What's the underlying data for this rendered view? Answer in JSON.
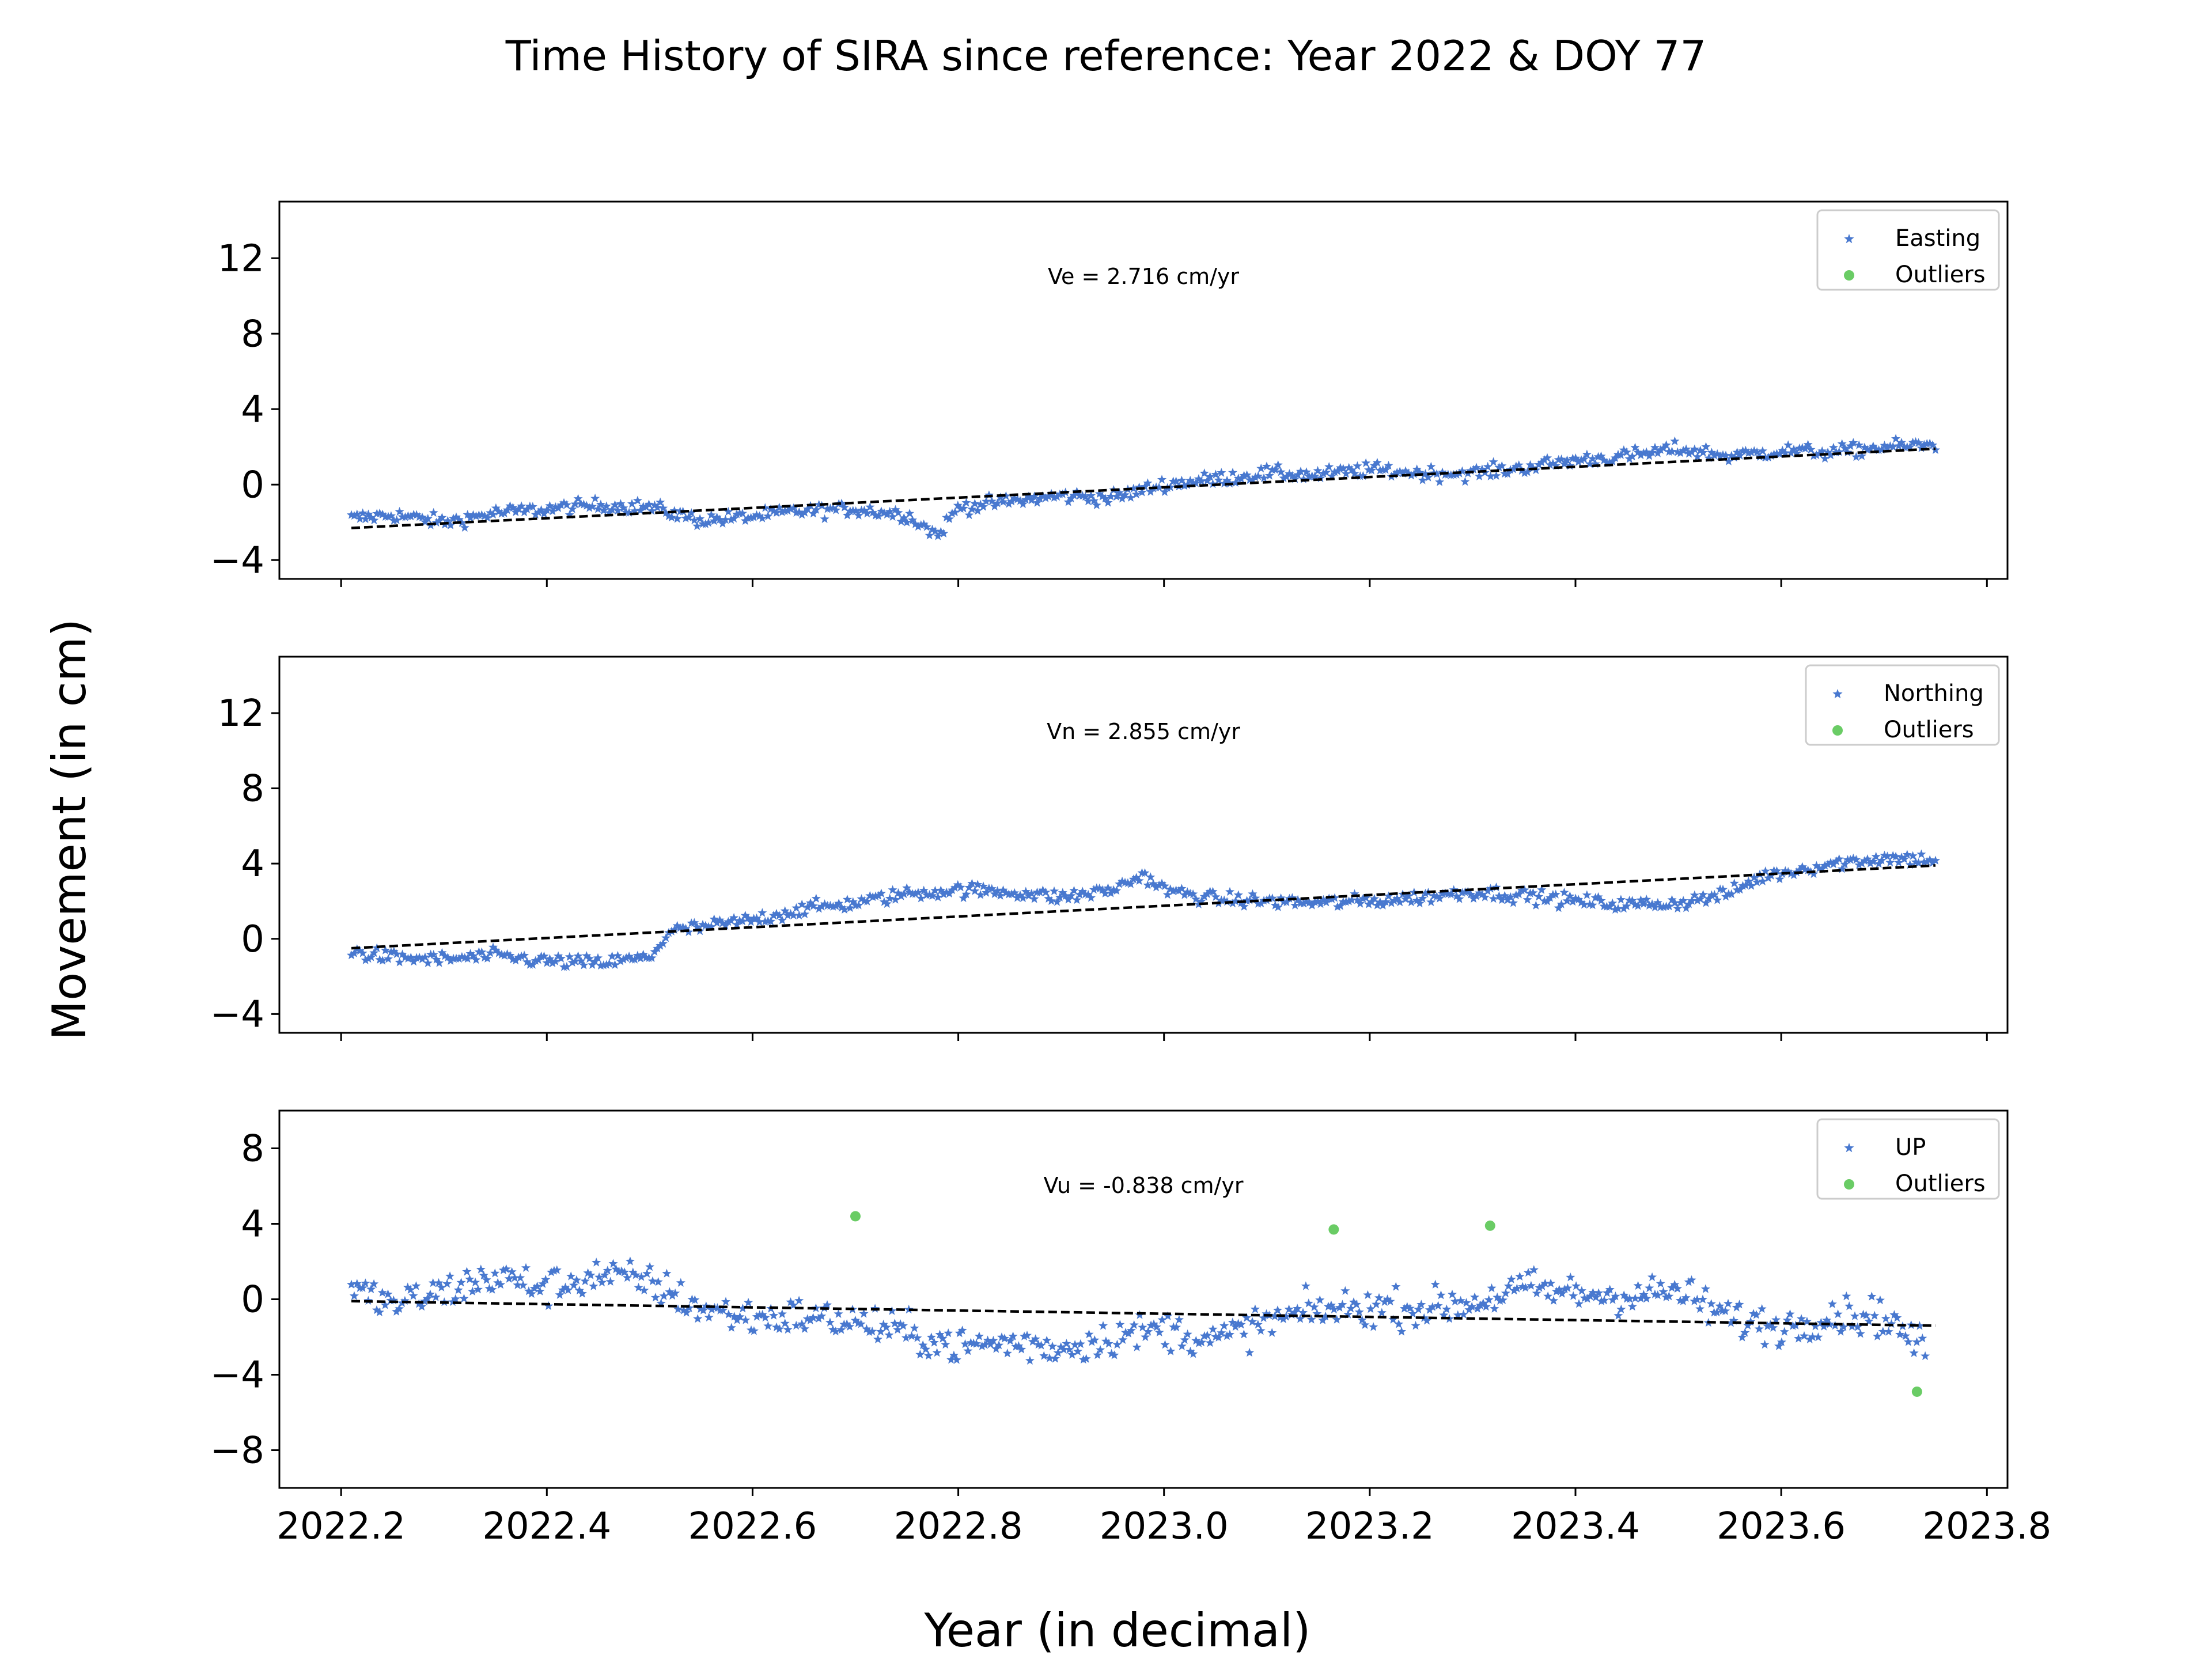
{
  "figure": {
    "title": "Time History of SIRA since reference: Year 2022 & DOY 77",
    "xlabel": "Year (in decimal)",
    "ylabel": "Movement (in cm)",
    "xlim": [
      2022.14,
      2023.82
    ],
    "xticks": [
      "2022.2",
      "2022.4",
      "2022.6",
      "2022.8",
      "2023.0",
      "2023.2",
      "2023.4",
      "2023.6",
      "2023.8"
    ],
    "colors": {
      "series": "#4878CF",
      "outlier": "#6ACC65",
      "fit": "#000000"
    }
  },
  "chart_data": [
    {
      "type": "scatter",
      "panel": "east",
      "xlim": [
        2022.14,
        2023.82
      ],
      "ylim": [
        -5,
        15
      ],
      "yticks": [
        "12",
        "8",
        "4",
        "0",
        "−4"
      ],
      "ytick_values": [
        12,
        8,
        4,
        0,
        -4
      ],
      "annotation": "Ve =  2.716 cm/yr",
      "legend": {
        "placement": "top-right",
        "series_label": "Easting",
        "outlier_label": "Outliers"
      },
      "series": {
        "name": "Easting",
        "x": [
          2022.21,
          2022.25,
          2022.3,
          2022.35,
          2022.4,
          2022.45,
          2022.5,
          2022.55,
          2022.6,
          2022.65,
          2022.7,
          2022.75,
          2022.78,
          2022.8,
          2022.85,
          2022.9,
          2022.95,
          2023.0,
          2023.05,
          2023.1,
          2023.15,
          2023.2,
          2023.25,
          2023.3,
          2023.35,
          2023.4,
          2023.45,
          2023.5,
          2023.55,
          2023.6,
          2023.65,
          2023.7,
          2023.75
        ],
        "y": [
          -1.8,
          -1.6,
          -2.0,
          -1.5,
          -1.3,
          -1.1,
          -1.2,
          -1.9,
          -1.7,
          -1.4,
          -1.3,
          -1.6,
          -2.7,
          -1.2,
          -0.9,
          -0.6,
          -0.7,
          0.0,
          0.3,
          0.6,
          0.5,
          0.8,
          0.6,
          0.6,
          0.9,
          1.3,
          1.5,
          1.9,
          1.5,
          1.8,
          1.7,
          2.0,
          2.1
        ]
      },
      "fit": {
        "x": [
          2022.21,
          2023.75
        ],
        "y": [
          -2.3,
          1.9
        ]
      },
      "outliers": {
        "x": [],
        "y": []
      }
    },
    {
      "type": "scatter",
      "panel": "north",
      "xlim": [
        2022.14,
        2023.82
      ],
      "ylim": [
        -5,
        15
      ],
      "yticks": [
        "12",
        "8",
        "4",
        "0",
        "−4"
      ],
      "ytick_values": [
        12,
        8,
        4,
        0,
        -4
      ],
      "annotation": "Vn =  2.855 cm/yr",
      "legend": {
        "placement": "top-right",
        "series_label": "Northing",
        "outlier_label": "Outliers"
      },
      "series": {
        "name": "Northing",
        "x": [
          2022.21,
          2022.25,
          2022.3,
          2022.35,
          2022.4,
          2022.45,
          2022.5,
          2022.52,
          2022.55,
          2022.6,
          2022.65,
          2022.7,
          2022.75,
          2022.8,
          2022.85,
          2022.9,
          2022.95,
          2022.98,
          2023.0,
          2023.05,
          2023.1,
          2023.15,
          2023.2,
          2023.25,
          2023.3,
          2023.35,
          2023.4,
          2023.45,
          2023.5,
          2023.55,
          2023.58,
          2023.6,
          2023.65,
          2023.7,
          2023.75
        ],
        "y": [
          -0.7,
          -1.0,
          -1.1,
          -0.9,
          -1.2,
          -1.3,
          -1.0,
          0.4,
          0.6,
          1.0,
          1.6,
          1.9,
          2.4,
          2.6,
          2.5,
          2.2,
          2.6,
          3.4,
          2.6,
          2.1,
          2.0,
          1.9,
          2.0,
          2.2,
          2.5,
          2.3,
          2.0,
          1.8,
          1.9,
          2.4,
          3.3,
          3.5,
          4.0,
          4.3,
          4.2
        ]
      },
      "fit": {
        "x": [
          2022.21,
          2023.75
        ],
        "y": [
          -0.5,
          3.9
        ]
      },
      "outliers": {
        "x": [],
        "y": []
      }
    },
    {
      "type": "scatter",
      "panel": "up",
      "xlim": [
        2022.14,
        2023.82
      ],
      "ylim": [
        -10,
        10
      ],
      "yticks": [
        "8",
        "4",
        "0",
        "−4",
        "−8"
      ],
      "ytick_values": [
        8,
        4,
        0,
        -4,
        -8
      ],
      "annotation": "Vu = -0.838 cm/yr",
      "legend": {
        "placement": "top-right",
        "series_label": "UP",
        "outlier_label": "Outliers"
      },
      "series": {
        "name": "UP",
        "x": [
          2022.21,
          2022.25,
          2022.3,
          2022.35,
          2022.4,
          2022.45,
          2022.5,
          2022.55,
          2022.6,
          2022.65,
          2022.7,
          2022.75,
          2022.8,
          2022.85,
          2022.9,
          2022.95,
          2023.0,
          2023.05,
          2023.1,
          2023.15,
          2023.2,
          2023.25,
          2023.3,
          2023.35,
          2023.4,
          2023.45,
          2023.5,
          2023.55,
          2023.6,
          2023.65,
          2023.7,
          2023.74
        ],
        "y": [
          0.5,
          -0.3,
          0.4,
          1.2,
          0.6,
          1.3,
          0.9,
          -0.5,
          -1.0,
          -0.9,
          -1.2,
          -1.8,
          -2.5,
          -2.3,
          -2.6,
          -2.0,
          -1.6,
          -2.2,
          -1.2,
          -0.6,
          -0.4,
          -0.5,
          -0.2,
          0.6,
          0.3,
          0.2,
          0.4,
          -1.0,
          -1.5,
          -0.8,
          -0.9,
          -2.7
        ]
      },
      "fit": {
        "x": [
          2022.21,
          2023.75
        ],
        "y": [
          -0.1,
          -1.4
        ]
      },
      "outliers": {
        "x": [
          2022.7,
          2023.165,
          2023.317,
          2023.732
        ],
        "y": [
          4.4,
          3.7,
          3.9,
          -4.9
        ]
      }
    }
  ]
}
